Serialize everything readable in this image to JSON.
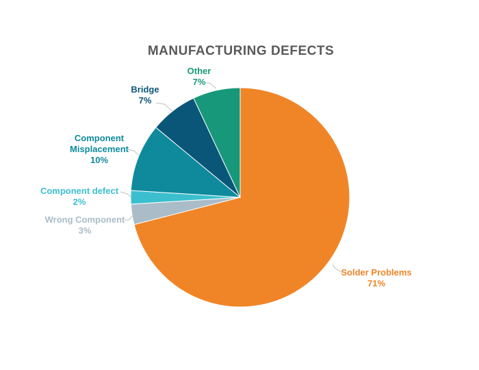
{
  "chart_data": {
    "type": "pie",
    "title": "MANUFACTURING DEFECTS",
    "start": "12 o'clock, clockwise",
    "slices": [
      {
        "label": "Solder Problems",
        "value": 71,
        "value_label": "71%",
        "color": "#F08528"
      },
      {
        "label": "Wrong Component",
        "value": 3,
        "value_label": "3%",
        "color": "#A9BCC8"
      },
      {
        "label": "Component defect",
        "value": 2,
        "value_label": "2%",
        "color": "#3BBFCF"
      },
      {
        "label": "Component Misplacement",
        "value": 10,
        "value_label": "10%",
        "color": "#0E8A9C"
      },
      {
        "label": "Bridge",
        "value": 7,
        "value_label": "7%",
        "color": "#0A5678"
      },
      {
        "label": "Other",
        "value": 7,
        "value_label": "7%",
        "color": "#18987A"
      }
    ],
    "legend": "none (data labels)"
  }
}
